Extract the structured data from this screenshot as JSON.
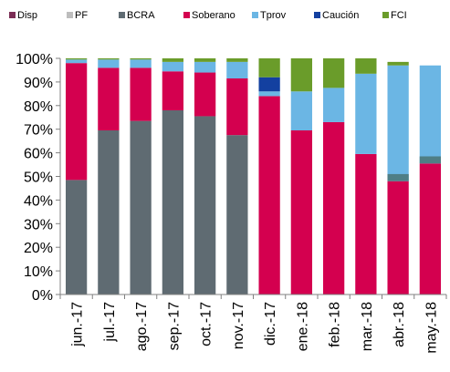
{
  "chart_data": {
    "type": "bar",
    "stacked": true,
    "percent": true,
    "title": "",
    "xlabel": "",
    "ylabel": "",
    "ylim": [
      0,
      100
    ],
    "yticks": [
      "0%",
      "10%",
      "20%",
      "30%",
      "40%",
      "50%",
      "60%",
      "70%",
      "80%",
      "90%",
      "100%"
    ],
    "grid": false,
    "legend_position": "top",
    "categories": [
      "jun.-17",
      "jul.-17",
      "ago.-17",
      "sep.-17",
      "oct.-17",
      "nov.-17",
      "dic.-17",
      "ene.-18",
      "feb.-18",
      "mar.-18",
      "abr.-18",
      "may.-18"
    ],
    "series": [
      {
        "name": "Disp",
        "color": "#7B2D55",
        "values": [
          0,
          0,
          0,
          0,
          0,
          0,
          0,
          0,
          0,
          0,
          0,
          0
        ]
      },
      {
        "name": "PF",
        "color": "#BDBDBD",
        "values": [
          0,
          0,
          0,
          0,
          0,
          0,
          0,
          0,
          0,
          0,
          0,
          0
        ]
      },
      {
        "name": "BCRA",
        "color": "#5F6B72",
        "values": [
          48.5,
          69.5,
          73.5,
          78,
          75.5,
          67.5,
          0,
          0,
          0,
          0,
          0,
          0
        ]
      },
      {
        "name": "Soberano",
        "color": "#D4004F",
        "values": [
          49.5,
          26.5,
          22.5,
          16.5,
          18.5,
          24,
          84,
          69.5,
          73,
          59.5,
          48,
          55.5
        ]
      },
      {
        "name": "Tprov",
        "color": "#6BB6E4",
        "values": [
          1.5,
          3.5,
          3.5,
          4,
          4.5,
          7,
          2,
          16.5,
          14.5,
          34,
          49,
          41.5
        ]
      },
      {
        "name": "Caución",
        "color": "#1340A0",
        "values": [
          0,
          0,
          0,
          0,
          0,
          0,
          6,
          0,
          0,
          0,
          0,
          0
        ]
      },
      {
        "name": "FCI",
        "color": "#6A9C2A",
        "values": [
          0.5,
          0.5,
          0.5,
          1.5,
          1.5,
          1.5,
          8,
          14,
          12.5,
          6.5,
          1.5,
          0
        ]
      }
    ],
    "special_segments": [
      {
        "category": "abr.-18",
        "series": "BCRA-marker",
        "color": "#4F7E85",
        "values_note": "small teal segment"
      }
    ]
  }
}
